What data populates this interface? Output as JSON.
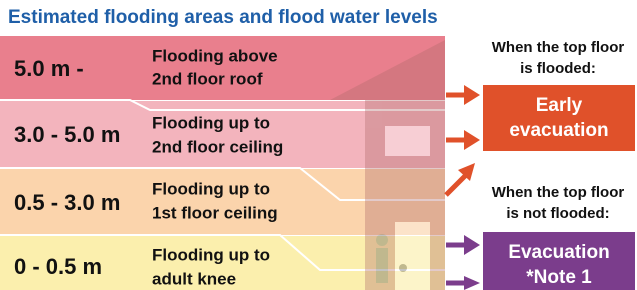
{
  "title": "Estimated flooding areas and flood water levels",
  "levels": [
    {
      "range": "5.0 m -",
      "description": [
        "Flooding above",
        "2nd floor roof"
      ]
    },
    {
      "range": "3.0 - 5.0 m",
      "description": [
        "Flooding up to",
        "2nd floor ceiling"
      ]
    },
    {
      "range": "0.5 - 3.0 m",
      "description": [
        "Flooding up to",
        "1st floor ceiling"
      ]
    },
    {
      "range": "0 - 0.5 m",
      "description": [
        "Flooding up to",
        "adult knee"
      ]
    }
  ],
  "outcomes": [
    {
      "condition": [
        "When the top floor",
        "is flooded:"
      ],
      "action": [
        "Early",
        "evacuation"
      ]
    },
    {
      "condition": [
        "When the top floor",
        "is not flooded:"
      ],
      "action": [
        "Evacuation",
        "*Note 1"
      ]
    }
  ]
}
